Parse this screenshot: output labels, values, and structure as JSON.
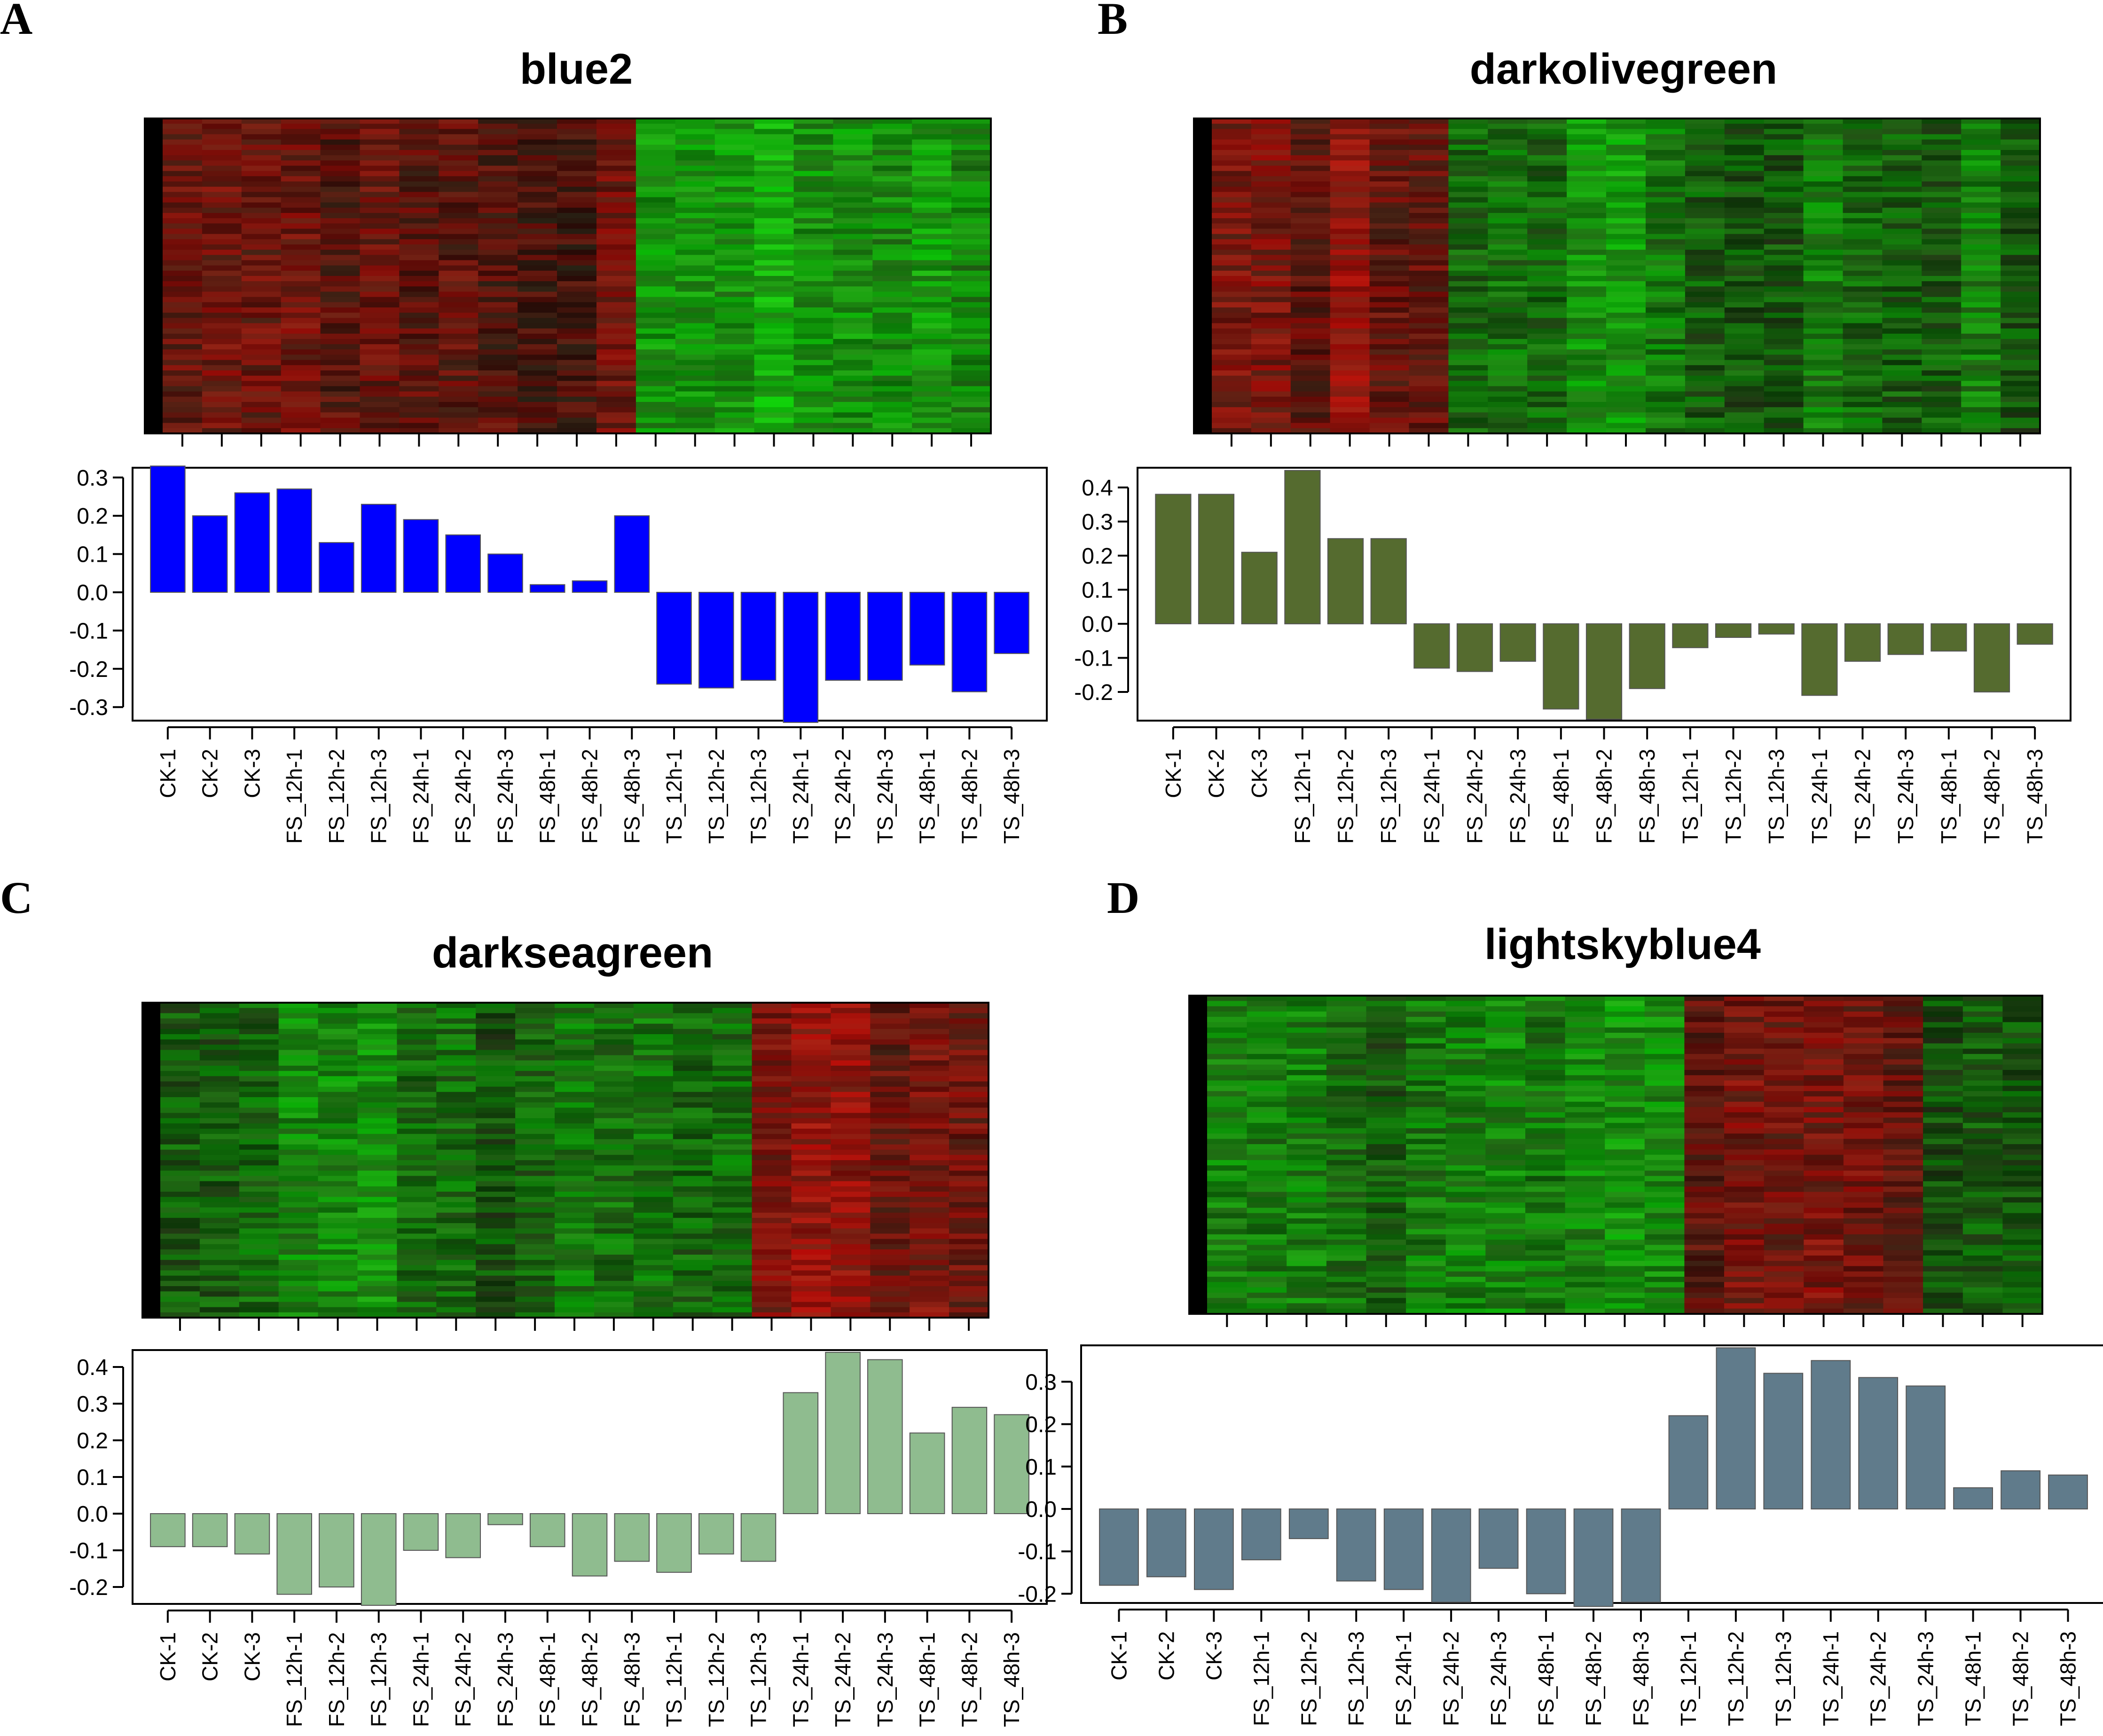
{
  "figure": {
    "panels": [
      {
        "letter": "A",
        "title": "blue2"
      },
      {
        "letter": "B",
        "title": "darkolivegreen"
      },
      {
        "letter": "C",
        "title": "darkseagreen"
      },
      {
        "letter": "D",
        "title": "lightskyblue4"
      }
    ]
  },
  "chart_data": [
    {
      "type": "bar",
      "panel": "A",
      "title": "blue2",
      "color": "#0000ff",
      "categories": [
        "CK-1",
        "CK-2",
        "CK-3",
        "FS_12h-1",
        "FS_12h-2",
        "FS_12h-3",
        "FS_24h-1",
        "FS_24h-2",
        "FS_24h-3",
        "FS_48h-1",
        "FS_48h-2",
        "FS_48h-3",
        "TS_12h-1",
        "TS_12h-2",
        "TS_12h-3",
        "TS_24h-1",
        "TS_24h-2",
        "TS_24h-3",
        "TS_48h-1",
        "TS_48h-2",
        "TS_48h-3"
      ],
      "values": [
        0.33,
        0.2,
        0.26,
        0.27,
        0.13,
        0.23,
        0.19,
        0.15,
        0.1,
        0.02,
        0.03,
        0.2,
        -0.24,
        -0.25,
        -0.23,
        -0.34,
        -0.23,
        -0.23,
        -0.19,
        -0.26,
        -0.16
      ],
      "yticks": [
        "0.3",
        "0.2",
        "0.1",
        "0.0",
        "-0.1",
        "-0.2",
        "-0.3"
      ],
      "ylim": [
        -0.34,
        0.33
      ],
      "heatmap": {
        "group_colors": [
          "red",
          "red",
          "red",
          "red",
          "red",
          "red",
          "red",
          "red",
          "red",
          "red",
          "red",
          "red",
          "green",
          "green",
          "green",
          "green",
          "green",
          "green",
          "green",
          "green",
          "green"
        ],
        "intensity": [
          0.35,
          0.4,
          0.38,
          0.4,
          0.25,
          0.35,
          0.3,
          0.3,
          0.25,
          0.15,
          0.15,
          0.4,
          0.6,
          0.6,
          0.6,
          0.75,
          0.6,
          0.6,
          0.55,
          0.65,
          0.5
        ]
      }
    },
    {
      "type": "bar",
      "panel": "B",
      "title": "darkolivegreen",
      "color": "#556b2f",
      "categories": [
        "CK-1",
        "CK-2",
        "CK-3",
        "FS_12h-1",
        "FS_12h-2",
        "FS_12h-3",
        "FS_24h-1",
        "FS_24h-2",
        "FS_24h-3",
        "FS_48h-1",
        "FS_48h-2",
        "FS_48h-3",
        "TS_12h-1",
        "TS_12h-2",
        "TS_12h-3",
        "TS_24h-1",
        "TS_24h-2",
        "TS_24h-3",
        "TS_48h-1",
        "TS_48h-2",
        "TS_48h-3"
      ],
      "values": [
        0.38,
        0.38,
        0.21,
        0.45,
        0.25,
        0.25,
        -0.13,
        -0.14,
        -0.11,
        -0.25,
        -0.28,
        -0.19,
        -0.07,
        -0.04,
        -0.03,
        -0.21,
        -0.11,
        -0.09,
        -0.08,
        -0.2,
        -0.06
      ],
      "yticks": [
        "0.4",
        "0.3",
        "0.2",
        "0.1",
        "0.0",
        "-0.1",
        "-0.2"
      ],
      "ylim": [
        -0.28,
        0.45
      ],
      "heatmap": {
        "group_colors": [
          "red",
          "red",
          "red",
          "red",
          "red",
          "red",
          "green",
          "green",
          "green",
          "green",
          "green",
          "green",
          "green",
          "green",
          "green",
          "green",
          "green",
          "green",
          "green",
          "green",
          "green"
        ],
        "intensity": [
          0.45,
          0.45,
          0.3,
          0.6,
          0.35,
          0.35,
          0.35,
          0.4,
          0.35,
          0.6,
          0.65,
          0.45,
          0.3,
          0.25,
          0.25,
          0.5,
          0.35,
          0.3,
          0.3,
          0.5,
          0.25
        ]
      }
    },
    {
      "type": "bar",
      "panel": "C",
      "title": "darkseagreen",
      "color": "#8fbc8f",
      "categories": [
        "CK-1",
        "CK-2",
        "CK-3",
        "FS_12h-1",
        "FS_12h-2",
        "FS_12h-3",
        "FS_24h-1",
        "FS_24h-2",
        "FS_24h-3",
        "FS_48h-1",
        "FS_48h-2",
        "FS_48h-3",
        "TS_12h-1",
        "TS_12h-2",
        "TS_12h-3",
        "TS_24h-1",
        "TS_24h-2",
        "TS_24h-3",
        "TS_48h-1",
        "TS_48h-2",
        "TS_48h-3"
      ],
      "values": [
        -0.09,
        -0.09,
        -0.11,
        -0.22,
        -0.2,
        -0.25,
        -0.1,
        -0.12,
        -0.03,
        -0.09,
        -0.17,
        -0.13,
        -0.16,
        -0.11,
        -0.13,
        0.33,
        0.44,
        0.42,
        0.22,
        0.29,
        0.27
      ],
      "yticks": [
        "0.4",
        "0.3",
        "0.2",
        "0.1",
        "0.0",
        "-0.1",
        "-0.2"
      ],
      "ylim": [
        -0.25,
        0.44
      ],
      "heatmap": {
        "group_colors": [
          "green",
          "green",
          "green",
          "green",
          "green",
          "green",
          "green",
          "green",
          "green",
          "green",
          "green",
          "green",
          "green",
          "green",
          "green",
          "red",
          "red",
          "red",
          "red",
          "red",
          "red"
        ],
        "intensity": [
          0.3,
          0.3,
          0.35,
          0.55,
          0.55,
          0.6,
          0.35,
          0.4,
          0.25,
          0.35,
          0.45,
          0.4,
          0.45,
          0.35,
          0.4,
          0.45,
          0.6,
          0.6,
          0.35,
          0.45,
          0.4
        ]
      }
    },
    {
      "type": "bar",
      "panel": "D",
      "title": "lightskyblue4",
      "color": "#607b8b",
      "categories": [
        "CK-1",
        "CK-2",
        "CK-3",
        "FS_12h-1",
        "FS_12h-2",
        "FS_12h-3",
        "FS_24h-1",
        "FS_24h-2",
        "FS_24h-3",
        "FS_48h-1",
        "FS_48h-2",
        "FS_48h-3",
        "TS_12h-1",
        "TS_12h-2",
        "TS_12h-3",
        "TS_24h-1",
        "TS_24h-2",
        "TS_24h-3",
        "TS_48h-1",
        "TS_48h-2",
        "TS_48h-3"
      ],
      "values": [
        -0.18,
        -0.16,
        -0.19,
        -0.12,
        -0.07,
        -0.17,
        -0.19,
        -0.22,
        -0.14,
        -0.2,
        -0.23,
        -0.22,
        0.22,
        0.38,
        0.32,
        0.35,
        0.31,
        0.29,
        0.05,
        0.09,
        0.08
      ],
      "yticks": [
        "0.3",
        "0.2",
        "0.1",
        "0.0",
        "-0.1",
        "-0.2"
      ],
      "ylim": [
        -0.23,
        0.38
      ],
      "heatmap": {
        "group_colors": [
          "green",
          "green",
          "green",
          "green",
          "green",
          "green",
          "green",
          "green",
          "green",
          "green",
          "green",
          "green",
          "red",
          "red",
          "red",
          "red",
          "red",
          "red",
          "green",
          "green",
          "green"
        ],
        "intensity": [
          0.5,
          0.45,
          0.5,
          0.4,
          0.3,
          0.45,
          0.5,
          0.55,
          0.45,
          0.55,
          0.6,
          0.55,
          0.3,
          0.45,
          0.4,
          0.45,
          0.4,
          0.35,
          0.2,
          0.3,
          0.25
        ]
      }
    }
  ]
}
